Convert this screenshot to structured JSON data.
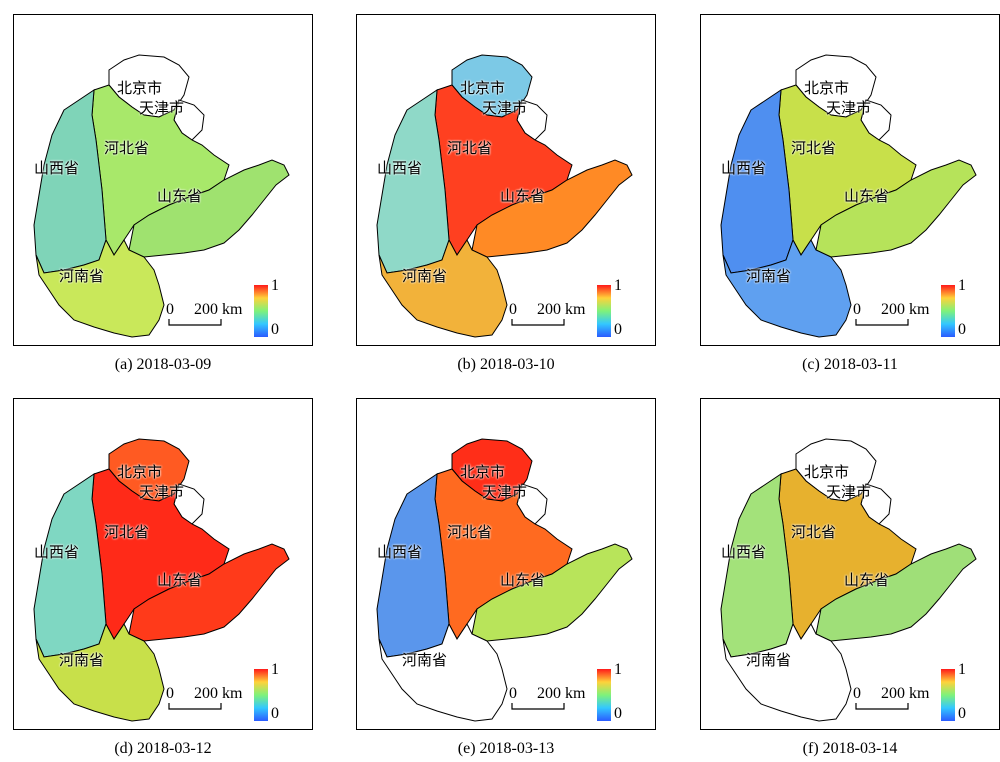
{
  "provinces": {
    "beijing": "北京市",
    "tianjin": "天津市",
    "hebei": "河北省",
    "shanxi": "山西省",
    "shandong": "山东省",
    "henan": "河南省"
  },
  "scalebar": {
    "zero": "0",
    "distance": "200 km"
  },
  "colorbar": {
    "max": "1",
    "min": "0",
    "colors": [
      "#2b5bff",
      "#33c7ff",
      "#7ff27a",
      "#ffd23a",
      "#ff1a1a"
    ]
  },
  "panels": [
    {
      "caption": "(a) 2018-03-09",
      "colors": {
        "shanxi": "#7fd4b8",
        "hebei": "#a8e86a",
        "shandong": "#9fe26f",
        "henan": "#c9e85a",
        "beijing": "#ffffff"
      }
    },
    {
      "caption": "(b) 2018-03-10",
      "colors": {
        "shanxi": "#8fd9c8",
        "hebei": "#ff4020",
        "shandong": "#ff8a25",
        "henan": "#f2b23a",
        "beijing": "#7cc9e6"
      }
    },
    {
      "caption": "(c) 2018-03-11",
      "colors": {
        "shanxi": "#4f8ff0",
        "hebei": "#c8e04a",
        "shandong": "#b6e35a",
        "henan": "#5fa0f0",
        "beijing": "#ffffff"
      }
    },
    {
      "caption": "(d) 2018-03-12",
      "colors": {
        "shanxi": "#7fd7c2",
        "hebei": "#ff2a18",
        "shandong": "#ff3a1a",
        "henan": "#c8e04a",
        "beijing": "#ff5a22"
      }
    },
    {
      "caption": "(e) 2018-03-13",
      "colors": {
        "shanxi": "#5a96ec",
        "hebei": "#ff6a20",
        "shandong": "#b8e45a",
        "henan": "#ffffff",
        "beijing": "#ff2e18"
      }
    },
    {
      "caption": "(f) 2018-03-14",
      "colors": {
        "shanxi": "#a3e27a",
        "hebei": "#e7b12e",
        "shandong": "#9fdf78",
        "henan": "#ffffff",
        "beijing": "#ffffff"
      }
    }
  ]
}
